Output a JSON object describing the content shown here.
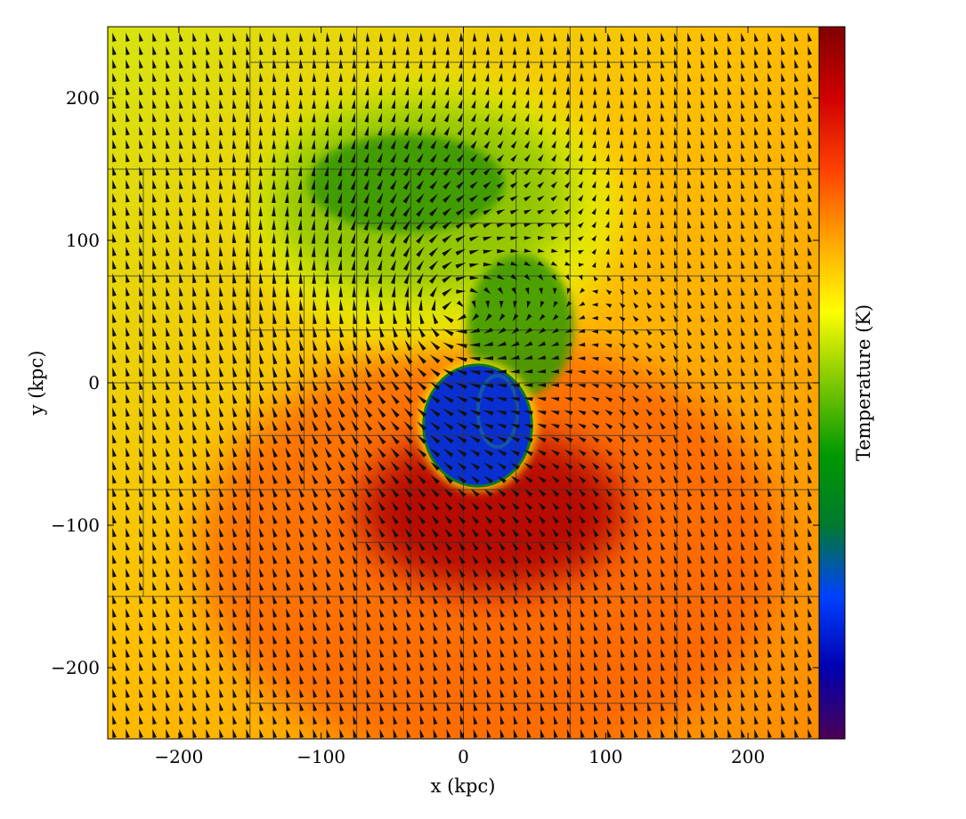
{
  "chart_data": {
    "type": "heatmap",
    "title": "",
    "xlabel": "x  (kpc)",
    "ylabel": "y  (kpc)",
    "xlim": [
      -250,
      250
    ],
    "ylim": [
      -250,
      250
    ],
    "x_ticks": [
      -200,
      -100,
      0,
      100,
      200
    ],
    "y_ticks": [
      -200,
      -100,
      0,
      100,
      200
    ],
    "x_tick_labels": [
      "−200",
      "−100",
      "0",
      "100",
      "200"
    ],
    "y_tick_labels": [
      "−200",
      "−100",
      "0",
      "100",
      "200"
    ],
    "colorbar_label": "Temperature  (K)",
    "colormap": [
      "#4b0055",
      "#0000b0",
      "#0040ff",
      "#007a2e",
      "#009900",
      "#7ec800",
      "#ffff00",
      "#ffa500",
      "#ff4000",
      "#d00000",
      "#800000"
    ],
    "overlay": "velocity vector field (quiver)",
    "amr_grid": true,
    "features": {
      "cold_core_center_kpc": [
        10,
        -30
      ],
      "cold_core_radius_kpc": 38,
      "cool_plume_center_kpc": [
        -40,
        140
      ],
      "hot_region_center_kpc": [
        20,
        -90
      ],
      "vortex_center_kpc": [
        -10,
        50
      ]
    },
    "amr_block_lines": {
      "horizontal": [
        {
          "y": 225,
          "x": [
            -150,
            150
          ]
        },
        {
          "y": 150,
          "x": [
            -250,
            250
          ]
        },
        {
          "y": 112,
          "x": [
            -75,
            75
          ]
        },
        {
          "y": 75,
          "x": [
            -250,
            250
          ]
        },
        {
          "y": 37,
          "x": [
            -150,
            150
          ]
        },
        {
          "y": 0,
          "x": [
            -250,
            250
          ]
        },
        {
          "y": -37,
          "x": [
            -150,
            150
          ]
        },
        {
          "y": -75,
          "x": [
            -250,
            250
          ]
        },
        {
          "y": -112,
          "x": [
            -75,
            75
          ]
        },
        {
          "y": -150,
          "x": [
            -250,
            250
          ]
        },
        {
          "y": -225,
          "x": [
            -150,
            150
          ]
        }
      ],
      "vertical": [
        {
          "x": -225,
          "y": [
            -150,
            150
          ]
        },
        {
          "x": -150,
          "y": [
            -250,
            250
          ]
        },
        {
          "x": -112,
          "y": [
            -75,
            75
          ]
        },
        {
          "x": -75,
          "y": [
            -250,
            250
          ]
        },
        {
          "x": -37,
          "y": [
            -150,
            150
          ]
        },
        {
          "x": 0,
          "y": [
            -250,
            250
          ]
        },
        {
          "x": 37,
          "y": [
            -150,
            150
          ]
        },
        {
          "x": 75,
          "y": [
            -250,
            250
          ]
        },
        {
          "x": 112,
          "y": [
            -75,
            75
          ]
        },
        {
          "x": 150,
          "y": [
            -250,
            250
          ]
        },
        {
          "x": 225,
          "y": [
            -150,
            150
          ]
        }
      ]
    }
  }
}
